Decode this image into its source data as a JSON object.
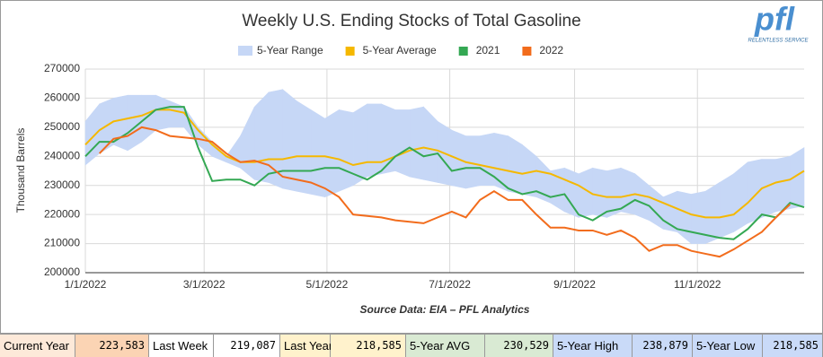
{
  "chart_data": {
    "type": "line",
    "title": "Weekly U.S. Ending Stocks of Total Gasoline",
    "ylabel": "Thousand Barrels",
    "source": "Source Data: EIA – PFL Analytics",
    "xlim": [
      "2022-01-01",
      "2022-12-24"
    ],
    "xticks": [
      {
        "value": "2022-01-01",
        "label": "1/1/2022"
      },
      {
        "value": "2022-03-01",
        "label": "3/1/2022"
      },
      {
        "value": "2022-05-01",
        "label": "5/1/2022"
      },
      {
        "value": "2022-07-01",
        "label": "7/1/2022"
      },
      {
        "value": "2022-09-01",
        "label": "9/1/2022"
      },
      {
        "value": "2022-11-01",
        "label": "11/1/2022"
      }
    ],
    "ylim": [
      200000,
      270000
    ],
    "yticks": [
      200000,
      210000,
      220000,
      230000,
      240000,
      250000,
      260000,
      270000
    ],
    "grid": true,
    "x": [
      "2022-01-01",
      "2022-01-08",
      "2022-01-15",
      "2022-01-22",
      "2022-01-29",
      "2022-02-05",
      "2022-02-12",
      "2022-02-19",
      "2022-02-26",
      "2022-03-05",
      "2022-03-12",
      "2022-03-19",
      "2022-03-26",
      "2022-04-02",
      "2022-04-09",
      "2022-04-16",
      "2022-04-23",
      "2022-04-30",
      "2022-05-07",
      "2022-05-14",
      "2022-05-21",
      "2022-05-28",
      "2022-06-04",
      "2022-06-11",
      "2022-06-18",
      "2022-06-25",
      "2022-07-02",
      "2022-07-09",
      "2022-07-16",
      "2022-07-23",
      "2022-07-30",
      "2022-08-06",
      "2022-08-13",
      "2022-08-20",
      "2022-08-27",
      "2022-09-03",
      "2022-09-10",
      "2022-09-17",
      "2022-09-24",
      "2022-10-01",
      "2022-10-08",
      "2022-10-15",
      "2022-10-22",
      "2022-10-29",
      "2022-11-05",
      "2022-11-12",
      "2022-11-19",
      "2022-11-26",
      "2022-12-03",
      "2022-12-10",
      "2022-12-17",
      "2022-12-24"
    ],
    "series": [
      {
        "name": "5-Year Range",
        "color": "#c6d7f6",
        "high": [
          252000,
          258000,
          260000,
          261000,
          261000,
          261000,
          259000,
          257000,
          250000,
          245000,
          240000,
          247000,
          257000,
          262000,
          263000,
          259000,
          256000,
          253000,
          256000,
          255000,
          258000,
          258000,
          256000,
          256000,
          257000,
          252000,
          249000,
          247000,
          247000,
          248000,
          247000,
          244000,
          240000,
          235000,
          236000,
          234000,
          236000,
          235000,
          236000,
          234000,
          230000,
          226000,
          228000,
          227000,
          228000,
          231000,
          234000,
          238000,
          239000,
          239000,
          240000,
          243000
        ],
        "low": [
          237000,
          241000,
          244000,
          242000,
          245000,
          249000,
          250000,
          250000,
          244000,
          240000,
          238000,
          236000,
          232000,
          231000,
          229000,
          228000,
          227000,
          226000,
          228000,
          230000,
          233000,
          234000,
          235000,
          233000,
          232000,
          231000,
          230000,
          229000,
          230000,
          230000,
          228000,
          227000,
          226000,
          224000,
          221000,
          219000,
          220000,
          219000,
          221000,
          220000,
          218000,
          215000,
          214000,
          210000,
          210000,
          212000,
          214000,
          217000,
          219000,
          221000,
          222000,
          223000
        ]
      },
      {
        "name": "5-Year Average",
        "color": "#f5b800",
        "values": [
          244000,
          249000,
          252000,
          253000,
          254000,
          256000,
          256000,
          255000,
          249000,
          244000,
          240000,
          238000,
          238000,
          239000,
          239000,
          240000,
          240000,
          240000,
          239000,
          237000,
          238000,
          238000,
          240000,
          242000,
          243000,
          242000,
          240000,
          238000,
          237000,
          236000,
          235000,
          234000,
          235000,
          234000,
          232000,
          230000,
          227000,
          226000,
          226000,
          227000,
          226000,
          224000,
          222000,
          220000,
          219000,
          219000,
          220000,
          224000,
          229000,
          231000,
          232000,
          235000
        ]
      },
      {
        "name": "2021",
        "color": "#34a853",
        "values": [
          240000,
          245000,
          245000,
          248000,
          252000,
          256000,
          257000,
          257000,
          243000,
          231500,
          232000,
          232000,
          230000,
          234000,
          235000,
          235000,
          235000,
          236000,
          236000,
          234000,
          232000,
          235000,
          240000,
          243000,
          240000,
          241000,
          235000,
          236000,
          236000,
          233000,
          229000,
          227000,
          228000,
          226000,
          227000,
          220000,
          218000,
          221000,
          222000,
          225000,
          223000,
          218000,
          215000,
          214000,
          213000,
          212000,
          211500,
          215000,
          220000,
          219000,
          224000,
          222500
        ]
      },
      {
        "name": "2022",
        "color": "#f26c1c",
        "values": [
          null,
          241000,
          246000,
          247000,
          250000,
          249000,
          247000,
          246500,
          246000,
          245000,
          241000,
          238000,
          238500,
          237000,
          233000,
          232000,
          231000,
          229000,
          226000,
          220000,
          219500,
          219000,
          218000,
          217500,
          217000,
          219000,
          221000,
          219000,
          225000,
          228000,
          225000,
          225000,
          220000,
          215500,
          215500,
          214500,
          214500,
          213000,
          214500,
          212000,
          207500,
          209500,
          209500,
          207500,
          206500,
          205500,
          208000,
          211000,
          214000,
          219000,
          223500,
          null
        ]
      }
    ]
  },
  "logo": {
    "text": "pfl",
    "tagline": "RELENTLESS SERVICE"
  },
  "summary": [
    [
      "Current Year",
      "223,583"
    ],
    [
      "Last Week",
      "219,087"
    ],
    [
      "Last Year",
      "218,585"
    ],
    [
      "5-Year AVG",
      "230,529"
    ],
    [
      "5-Year High",
      "238,879"
    ],
    [
      "5-Year Low",
      "218,585"
    ]
  ]
}
